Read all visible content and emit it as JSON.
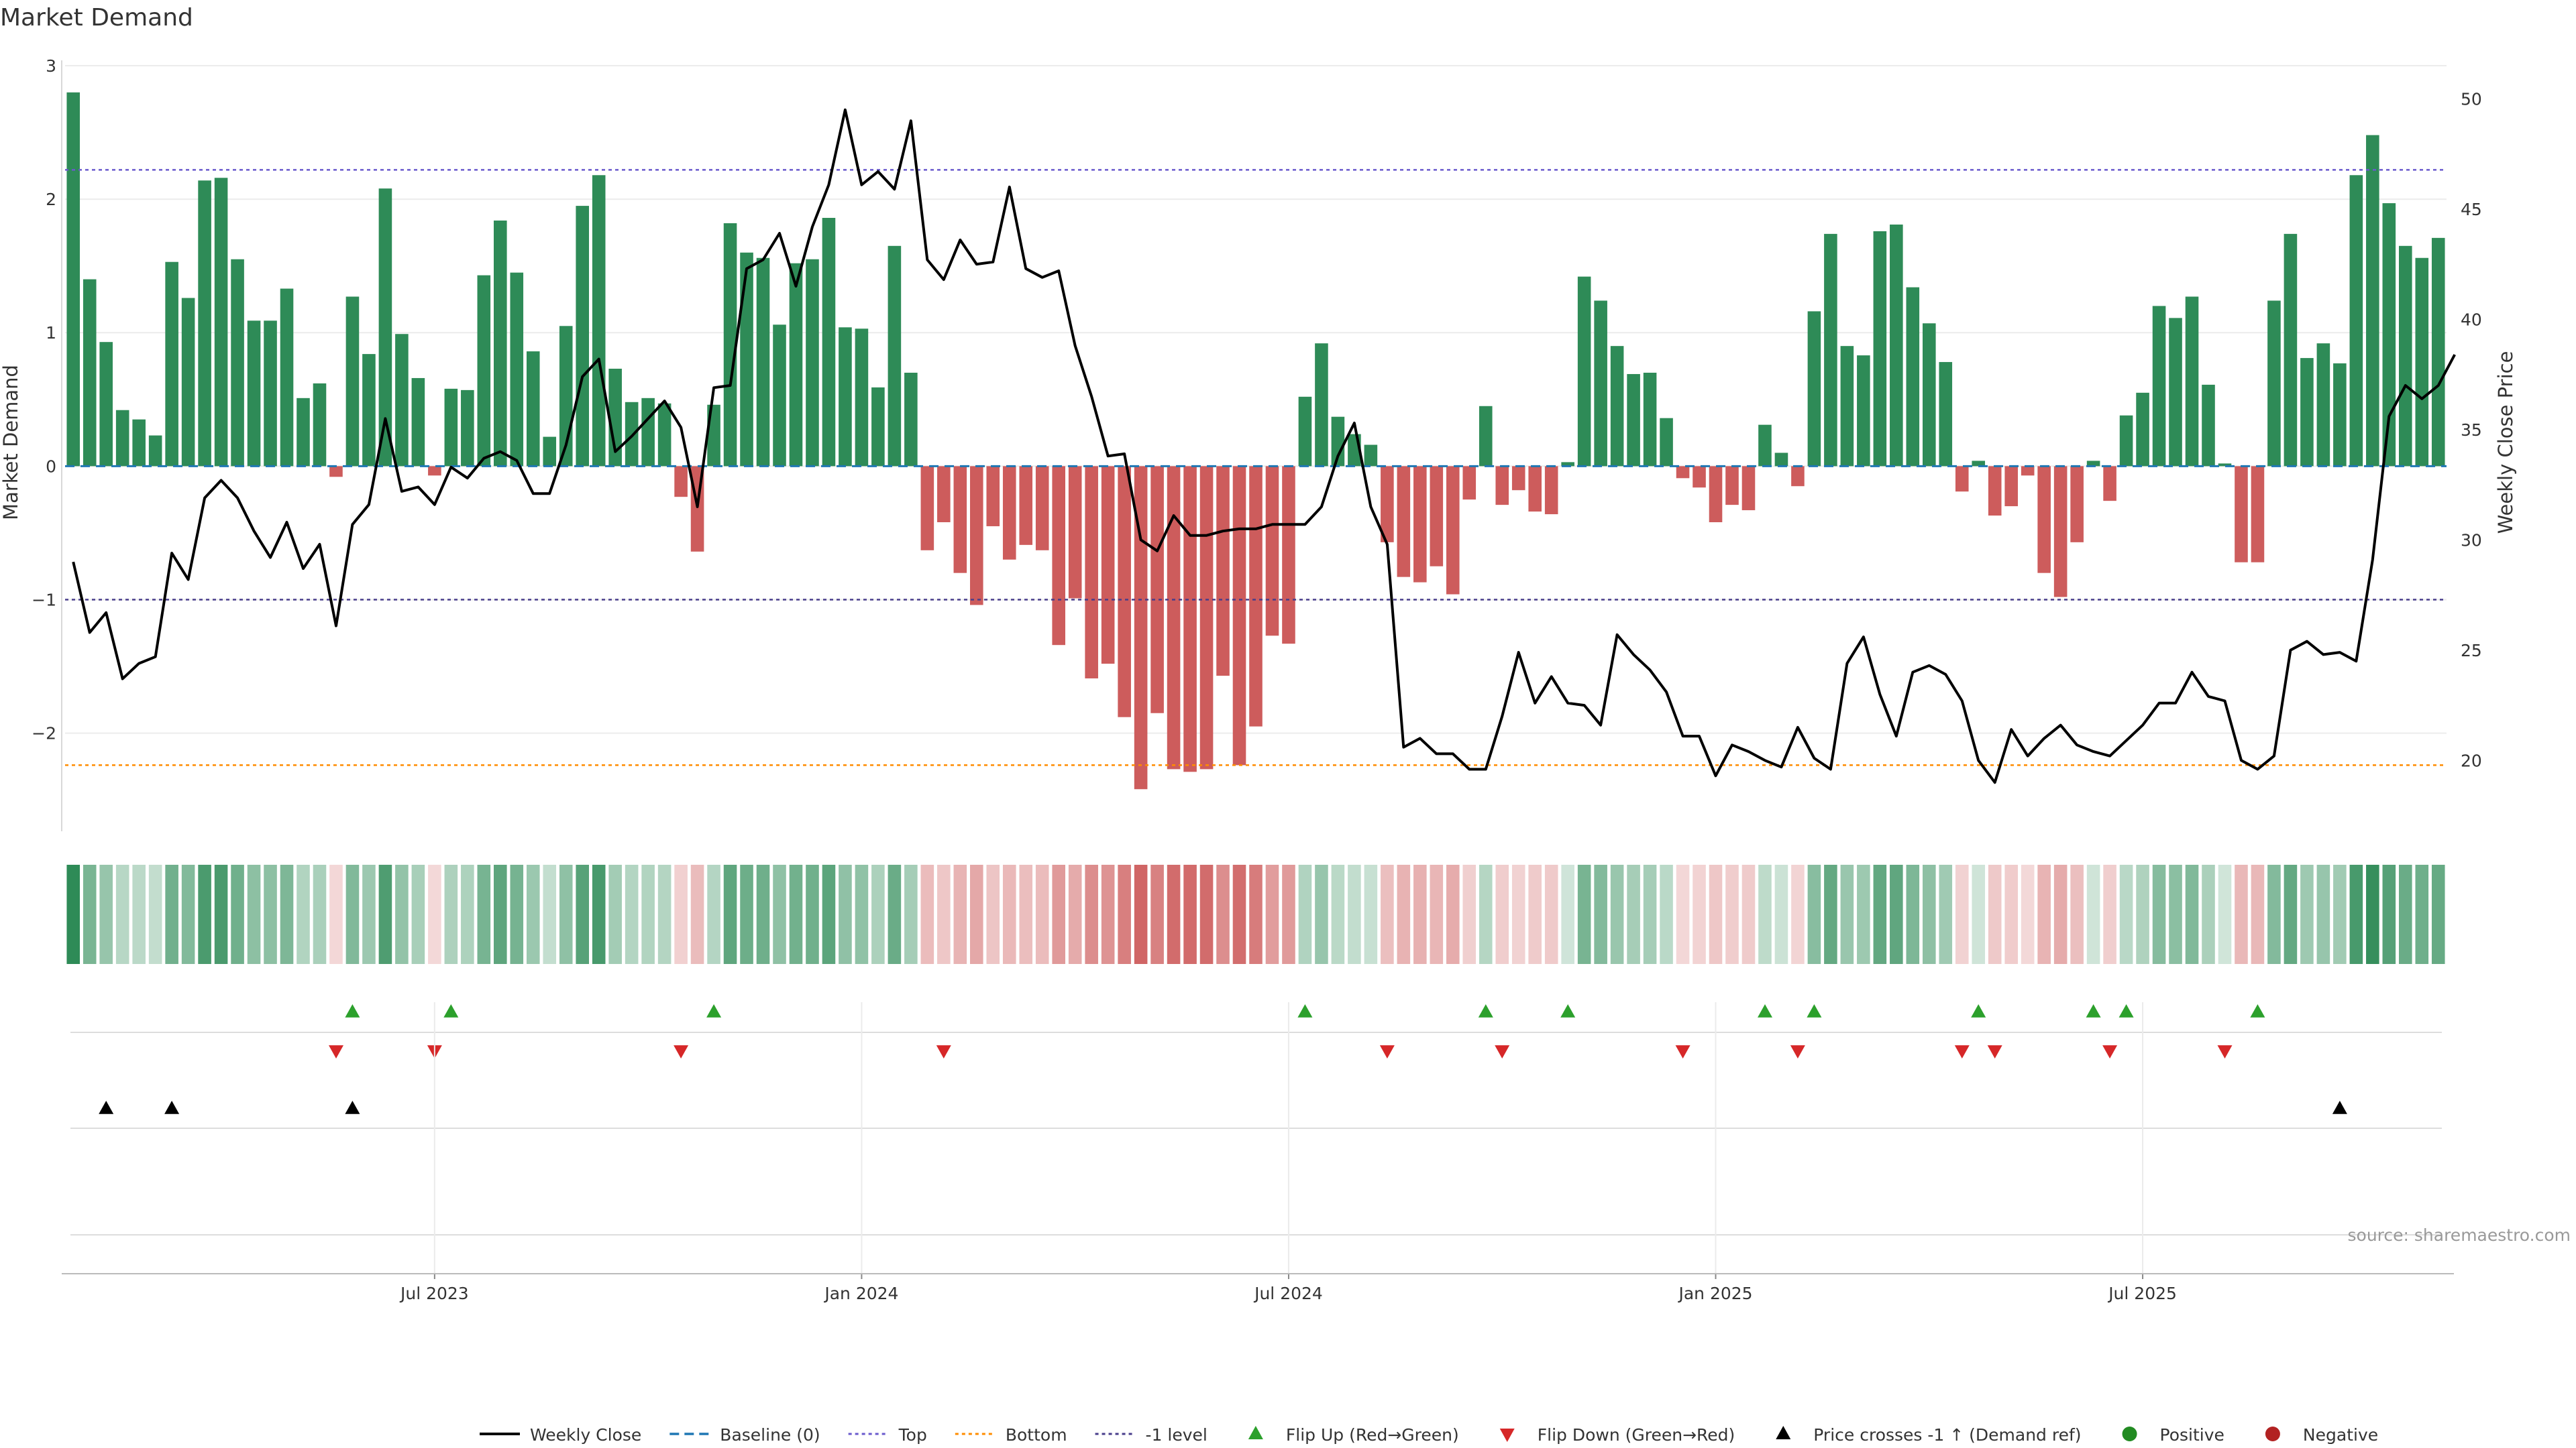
{
  "chart_data": {
    "type": "bar",
    "title": "Market Demand",
    "ylabel": "Market Demand",
    "y2label": "Weekly Close Price",
    "ylim": [
      -2.7,
      3.0
    ],
    "y2lim": [
      17.0,
      51.5
    ],
    "yticks": [
      {
        "v": 3,
        "t": "3"
      },
      {
        "v": 2,
        "t": "2"
      },
      {
        "v": 1,
        "t": "1"
      },
      {
        "v": 0,
        "t": "0"
      },
      {
        "v": -1,
        "t": "−1"
      },
      {
        "v": -2,
        "t": "−2"
      }
    ],
    "y2ticks": [
      {
        "v": 50,
        "t": "50"
      },
      {
        "v": 45,
        "t": "45"
      },
      {
        "v": 40,
        "t": "40"
      },
      {
        "v": 35,
        "t": "35"
      },
      {
        "v": 30,
        "t": "30"
      },
      {
        "v": 25,
        "t": "25"
      },
      {
        "v": 20,
        "t": "20"
      }
    ],
    "xticks": [
      {
        "i": 22,
        "t": "Jul 2023"
      },
      {
        "i": 48,
        "t": "Jan 2024"
      },
      {
        "i": 74,
        "t": "Jul 2024"
      },
      {
        "i": 100,
        "t": "Jan 2025"
      },
      {
        "i": 126,
        "t": "Jul 2025"
      }
    ],
    "levels": {
      "top": 2.22,
      "bottom": -2.24,
      "minus_one": -1
    },
    "colors": {
      "positive": "#2e8b57",
      "negative": "#cd5c5c",
      "price": "#000000",
      "baseline": "#1f77b4",
      "top": "#6a5acd",
      "bottom": "#ff8c00",
      "minus_one": "#483d8b",
      "flip_up": "#2ca02c",
      "flip_down": "#d62728",
      "cross": "#000000",
      "legend_positive": "#228b22",
      "legend_negative": "#b22222"
    },
    "series": [
      {
        "name": "Market Demand",
        "values": [
          2.8,
          1.4,
          0.93,
          0.42,
          0.35,
          0.23,
          1.53,
          1.26,
          2.14,
          2.16,
          1.55,
          1.09,
          1.09,
          1.33,
          0.51,
          0.62,
          -0.08,
          1.27,
          0.84,
          2.08,
          0.99,
          0.66,
          -0.07,
          0.58,
          0.57,
          1.43,
          1.84,
          1.45,
          0.86,
          0.22,
          1.05,
          1.95,
          2.18,
          0.73,
          0.48,
          0.51,
          0.47,
          -0.23,
          -0.64,
          0.46,
          1.82,
          1.6,
          1.56,
          1.06,
          1.52,
          1.55,
          1.86,
          1.04,
          1.03,
          0.59,
          1.65,
          0.7,
          -0.63,
          -0.42,
          -0.8,
          -1.04,
          -0.45,
          -0.7,
          -0.59,
          -0.63,
          -1.34,
          -0.99,
          -1.59,
          -1.48,
          -1.88,
          -2.42,
          -1.85,
          -2.27,
          -2.29,
          -2.27,
          -1.57,
          -2.24,
          -1.95,
          -1.27,
          -1.33,
          0.52,
          0.92,
          0.37,
          0.24,
          0.16,
          -0.57,
          -0.83,
          -0.87,
          -0.75,
          -0.96,
          -0.25,
          0.45,
          -0.29,
          -0.18,
          -0.34,
          -0.36,
          0.03,
          1.42,
          1.24,
          0.9,
          0.69,
          0.7,
          0.36,
          -0.09,
          -0.16,
          -0.42,
          -0.29,
          -0.33,
          0.31,
          0.1,
          -0.15,
          1.16,
          1.74,
          0.9,
          0.83,
          1.76,
          1.81,
          1.34,
          1.07,
          0.78,
          -0.19,
          0.04,
          -0.37,
          -0.3,
          -0.07,
          -0.8,
          -0.98,
          -0.57,
          0.04,
          -0.26,
          0.38,
          0.55,
          1.2,
          1.11,
          1.27,
          0.61,
          0.02,
          -0.72,
          -0.72,
          1.24,
          1.74,
          0.81,
          0.92,
          0.77,
          2.18,
          2.48,
          1.97,
          1.65,
          1.56,
          1.71
        ]
      },
      {
        "name": "Weekly Close",
        "values": [
          29.0,
          25.8,
          26.7,
          23.7,
          24.4,
          24.7,
          29.4,
          28.2,
          31.9,
          32.7,
          31.9,
          30.4,
          29.2,
          30.8,
          28.7,
          29.8,
          26.1,
          30.7,
          31.6,
          35.5,
          32.2,
          32.4,
          31.6,
          33.3,
          32.8,
          33.7,
          34.0,
          33.6,
          32.1,
          32.1,
          34.3,
          37.4,
          38.2,
          34.0,
          34.7,
          35.5,
          36.3,
          35.1,
          31.5,
          36.9,
          37.0,
          42.3,
          42.7,
          43.9,
          41.5,
          44.2,
          46.1,
          49.5,
          46.1,
          46.7,
          45.9,
          49.0,
          42.7,
          41.8,
          43.6,
          42.5,
          42.6,
          46.0,
          42.3,
          41.9,
          42.2,
          38.8,
          36.5,
          33.8,
          33.9,
          30.0,
          29.5,
          31.1,
          30.2,
          30.2,
          30.4,
          30.5,
          30.5,
          30.7,
          30.7,
          30.7,
          31.5,
          33.8,
          35.3,
          31.5,
          29.8,
          20.6,
          21.0,
          20.3,
          20.3,
          19.6,
          19.6,
          22.0,
          24.9,
          22.6,
          23.8,
          22.6,
          22.5,
          21.6,
          25.7,
          24.8,
          24.1,
          23.1,
          21.1,
          21.1,
          19.3,
          20.7,
          20.4,
          20.0,
          19.7,
          21.5,
          20.1,
          19.6,
          24.4,
          25.6,
          23.0,
          21.1,
          24.0,
          24.3,
          23.9,
          22.7,
          20.0,
          19.0,
          21.4,
          20.2,
          21.0,
          21.6,
          20.7,
          20.4,
          20.2,
          20.9,
          21.6,
          22.6,
          22.6,
          24.0,
          22.9,
          22.7,
          20.0,
          19.6,
          20.2,
          25.0,
          25.4,
          24.8,
          24.9,
          24.5,
          29.1,
          35.6,
          37.0,
          36.4,
          37.0,
          38.4
        ]
      }
    ],
    "flip_up_indices": [
      17,
      23,
      39,
      75,
      86,
      91,
      103,
      106,
      116,
      123,
      125,
      133
    ],
    "flip_down_indices": [
      16,
      22,
      37,
      53,
      80,
      87,
      98,
      105,
      115,
      117,
      124,
      131
    ],
    "cross_indices": [
      2,
      6,
      17,
      138
    ],
    "legend": [
      {
        "label": "Weekly Close",
        "kind": "line",
        "color": "#000000"
      },
      {
        "label": "Baseline (0)",
        "kind": "dash",
        "color": "#1f77b4"
      },
      {
        "label": "Top",
        "kind": "dot",
        "color": "#6a5acd"
      },
      {
        "label": "Bottom",
        "kind": "dot",
        "color": "#ff8c00"
      },
      {
        "label": "-1 level",
        "kind": "dot",
        "color": "#483d8b"
      },
      {
        "label": "Flip Up (Red→Green)",
        "kind": "tri-up",
        "color": "#2ca02c"
      },
      {
        "label": "Flip Down (Green→Red)",
        "kind": "tri-down",
        "color": "#d62728"
      },
      {
        "label": "Price crosses -1 ↑ (Demand ref)",
        "kind": "tri-up",
        "color": "#000000"
      },
      {
        "label": "Positive",
        "kind": "circle",
        "color": "#228b22"
      },
      {
        "label": "Negative",
        "kind": "circle",
        "color": "#b22222"
      }
    ],
    "source": "source: sharemaestro.com"
  }
}
